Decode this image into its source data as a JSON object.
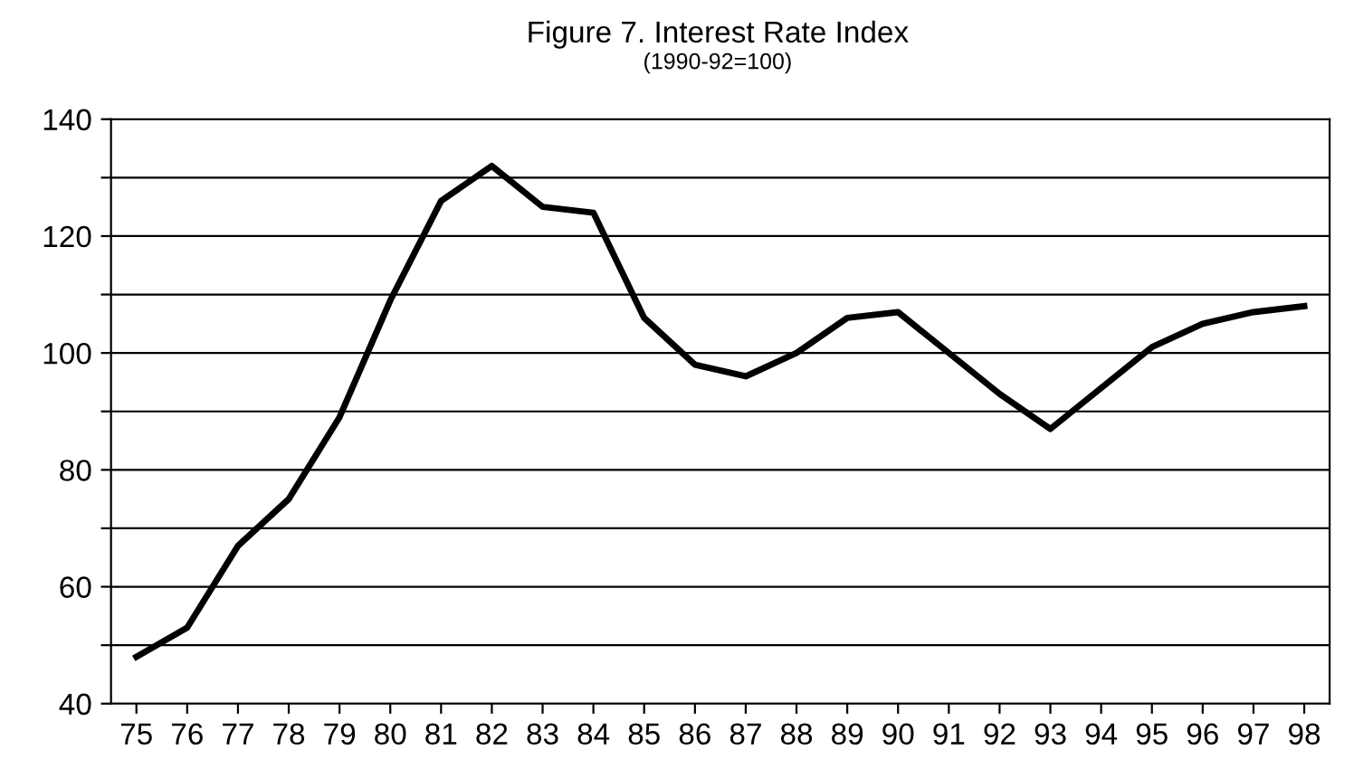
{
  "chart_data": {
    "type": "line",
    "title": "Figure 7. Interest Rate Index",
    "subtitle": "(1990-92=100)",
    "categories": [
      "75",
      "76",
      "77",
      "78",
      "79",
      "80",
      "81",
      "82",
      "83",
      "84",
      "85",
      "86",
      "87",
      "88",
      "89",
      "90",
      "91",
      "92",
      "93",
      "94",
      "95",
      "96",
      "97",
      "98"
    ],
    "series": [
      {
        "color": "#000000",
        "values": [
          48,
          53,
          67,
          75,
          89,
          109,
          126,
          132,
          125,
          124,
          106,
          98,
          96,
          100,
          106,
          107,
          100,
          93,
          87,
          94,
          101,
          105,
          107,
          108
        ]
      }
    ],
    "ylim": [
      40,
      140
    ],
    "yticks": [
      40,
      {
        "value": 50,
        "label": null
      },
      60,
      {
        "value": 70,
        "label": null
      },
      80,
      {
        "value": 90,
        "label": null
      },
      100,
      {
        "value": 110,
        "label": null
      },
      120,
      {
        "value": 130,
        "label": null
      },
      140
    ],
    "grid": "y",
    "marker": "none",
    "line_style": "solid"
  }
}
